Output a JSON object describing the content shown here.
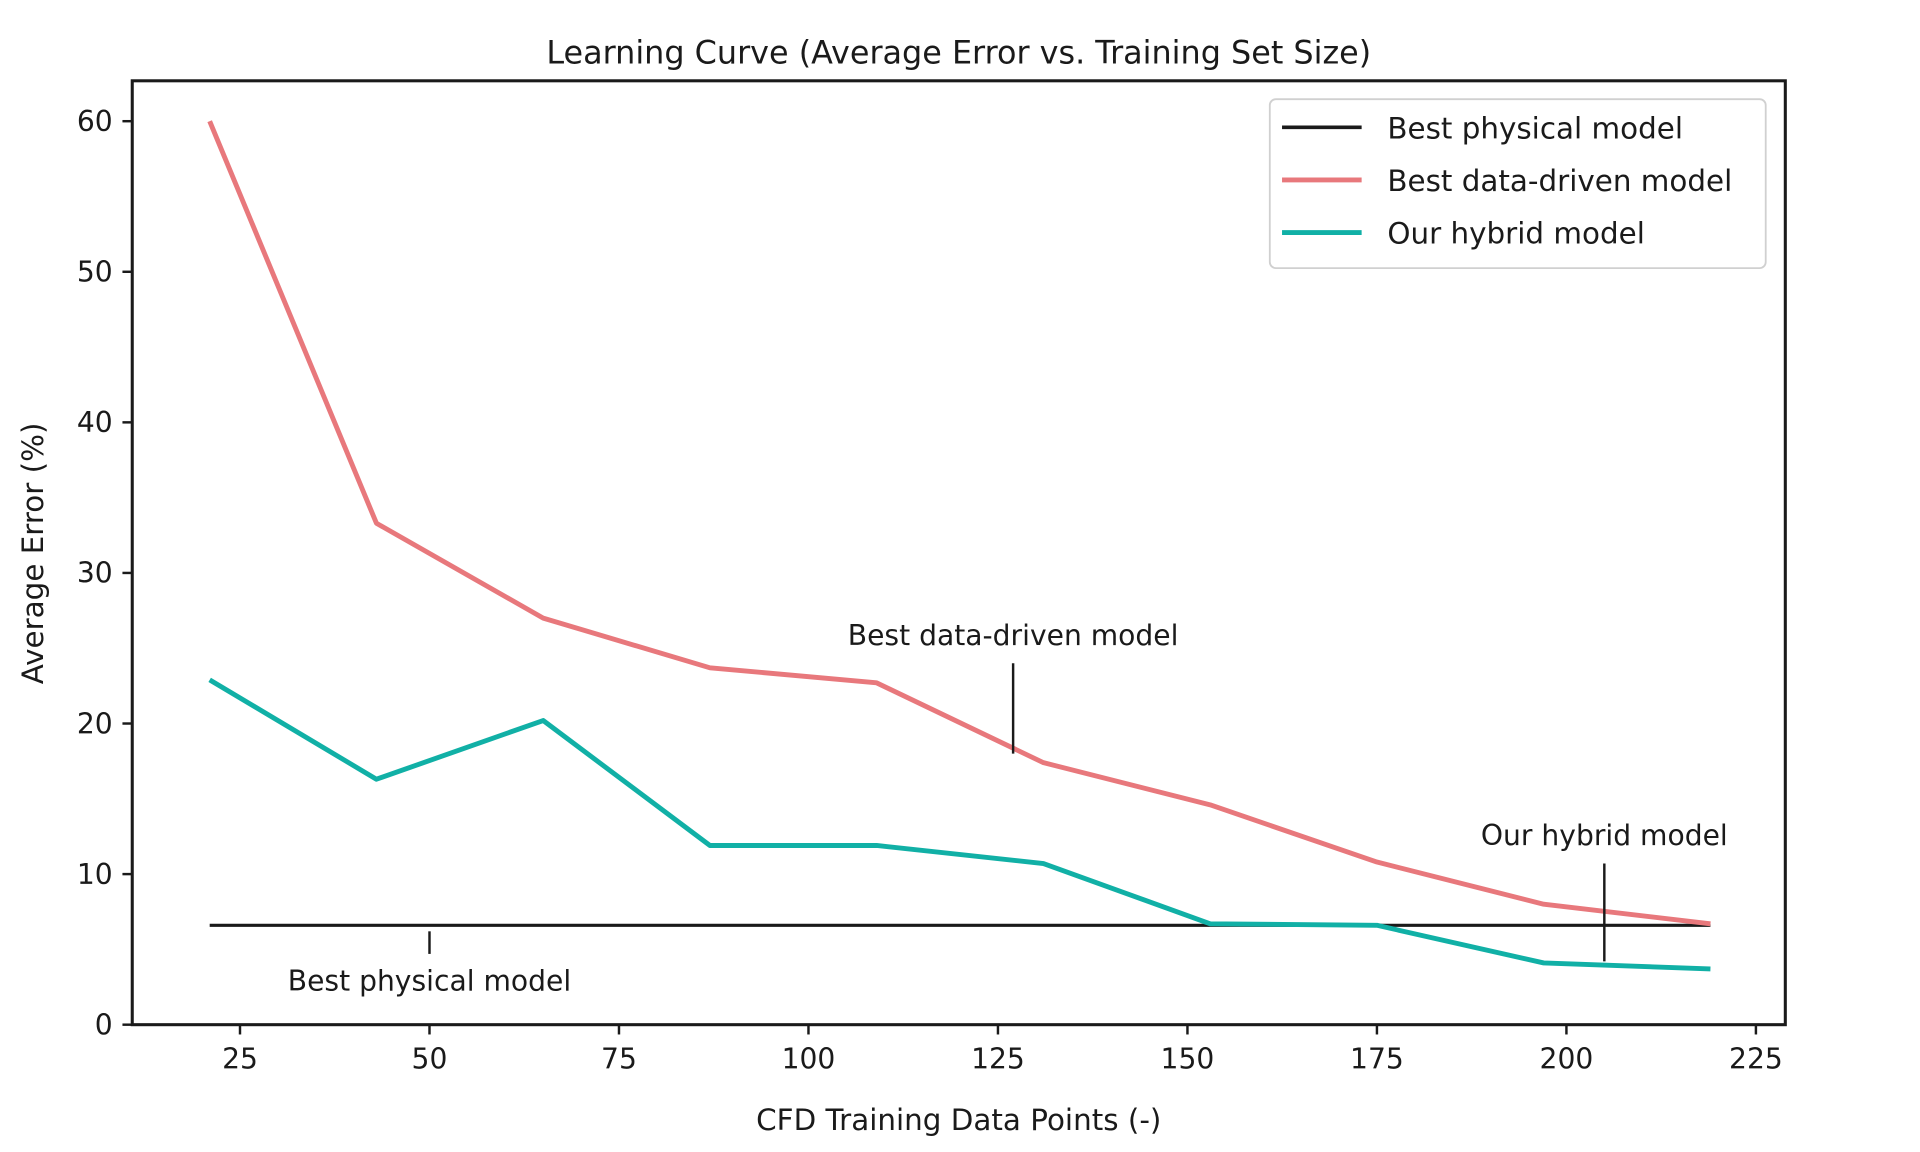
{
  "chart_data": {
    "type": "line",
    "title": "Learning Curve (Average Error vs. Training Set Size)",
    "xlabel": "CFD Training Data Points (-)",
    "ylabel": "Average Error (%)",
    "xlim": [
      12,
      227
    ],
    "ylim": [
      0,
      62.5
    ],
    "xticks": [
      25,
      50,
      75,
      100,
      125,
      150,
      175,
      200,
      225
    ],
    "yticks": [
      0,
      10,
      20,
      30,
      40,
      50,
      60
    ],
    "grid": false,
    "legend_position": "top-right",
    "x": [
      21,
      43,
      65,
      87,
      109,
      131,
      153,
      175,
      197,
      219
    ],
    "series": [
      {
        "name": "Best physical model",
        "color": "#1a1a1a",
        "values": [
          6.6,
          6.6,
          6.6,
          6.6,
          6.6,
          6.6,
          6.6,
          6.6,
          6.6,
          6.6
        ]
      },
      {
        "name": "Best data-driven model",
        "color": "#e8787c",
        "values": [
          60.0,
          33.3,
          27.0,
          23.7,
          22.7,
          17.4,
          14.6,
          10.8,
          8.0,
          6.7
        ]
      },
      {
        "name": "Our hybrid model",
        "color": "#11b0a6",
        "values": [
          22.9,
          16.3,
          20.2,
          11.9,
          11.9,
          10.7,
          6.7,
          6.6,
          4.1,
          3.7
        ]
      }
    ],
    "annotations": [
      {
        "text": "Best data-driven model",
        "x": 127,
        "y_top": 24.0,
        "y_bottom": 18.0,
        "label_above": true
      },
      {
        "text": "Our hybrid model",
        "x": 205,
        "y_top": 10.7,
        "y_bottom": 4.2,
        "label_above": true
      },
      {
        "text": "Best physical model",
        "x": 50,
        "y_top": 6.2,
        "y_bottom": 4.7,
        "label_above": false
      }
    ]
  }
}
